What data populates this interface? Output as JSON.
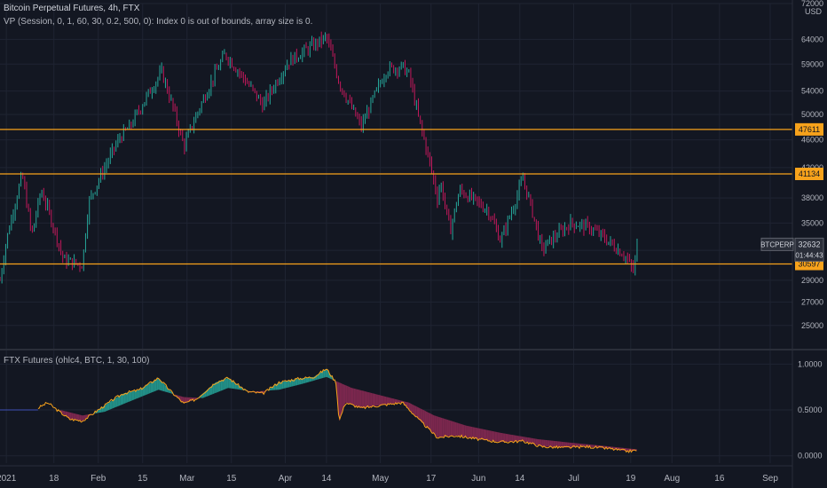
{
  "header": {
    "title": "Bitcoin Perpetual Futures, 4h, FTX",
    "indicator_error": "VP (Session, 0, 1, 60, 30, 0.2, 500, 0): Index 0 is out of bounds, array size is 0.",
    "lower_indicator": "FTX Futures (ohlc4, BTC, 1, 30, 100)"
  },
  "colors": {
    "background": "#131722",
    "grid": "#1f2432",
    "axis_text": "#b2b5be",
    "level_line": "#f7a21b",
    "candle_up": "#26a69a",
    "candle_down": "#c2185b",
    "oscillator": "#f7a21b",
    "ribbon_up": "#26a69a",
    "ribbon_down": "#8e2a56",
    "baseline": "#3f51b5"
  },
  "chart_data": [
    {
      "type": "candlestick",
      "title": "Bitcoin Perpetual Futures, 4h, FTX",
      "y_axis_unit": "USD",
      "y_scale": "log",
      "y_ticks": [
        25000,
        27000,
        29000,
        32000,
        35000,
        38000,
        42000,
        46000,
        50000,
        54000,
        59000,
        64000,
        72000
      ],
      "y_range": [
        23500,
        72000
      ],
      "x_tick_labels": [
        "2021",
        "18",
        "Feb",
        "15",
        "Mar",
        "15",
        "Apr",
        "14",
        "May",
        "17",
        "Jun",
        "14",
        "Jul",
        "19",
        "Aug",
        "16",
        "Sep"
      ],
      "x_range": [
        "2021-01-01",
        "2021-09-08"
      ],
      "levels": [
        47611,
        41134,
        30597
      ],
      "last_price": 32632,
      "symbol_tag": "BTCPERP",
      "countdown": "01:44:43",
      "price_path": [
        [
          "2021-01-01",
          29000
        ],
        [
          "2021-01-03",
          33000
        ],
        [
          "2021-01-08",
          41000
        ],
        [
          "2021-01-11",
          33500
        ],
        [
          "2021-01-14",
          39000
        ],
        [
          "2021-01-21",
          31000
        ],
        [
          "2021-01-27",
          30500
        ],
        [
          "2021-01-29",
          37500
        ],
        [
          "2021-02-08",
          46500
        ],
        [
          "2021-02-11",
          48000
        ],
        [
          "2021-02-21",
          57500
        ],
        [
          "2021-02-28",
          45000
        ],
        [
          "2021-03-13",
          61000
        ],
        [
          "2021-03-25",
          51500
        ],
        [
          "2021-04-02",
          59500
        ],
        [
          "2021-04-14",
          64500
        ],
        [
          "2021-04-18",
          55500
        ],
        [
          "2021-04-22",
          51000
        ],
        [
          "2021-04-25",
          48000
        ],
        [
          "2021-05-03",
          58000
        ],
        [
          "2021-05-08",
          58500
        ],
        [
          "2021-05-10",
          57000
        ],
        [
          "2021-05-13",
          49500
        ],
        [
          "2021-05-19",
          38000
        ],
        [
          "2021-05-20",
          40000
        ],
        [
          "2021-05-23",
          34000
        ],
        [
          "2021-05-26",
          39000
        ],
        [
          "2021-06-04",
          36500
        ],
        [
          "2021-06-08",
          33000
        ],
        [
          "2021-06-12",
          37000
        ],
        [
          "2021-06-15",
          40500
        ],
        [
          "2021-06-21",
          32000
        ],
        [
          "2021-06-22",
          32500
        ],
        [
          "2021-06-30",
          35000
        ],
        [
          "2021-07-06",
          34500
        ],
        [
          "2021-07-10",
          33500
        ],
        [
          "2021-07-17",
          31500
        ],
        [
          "2021-07-20",
          29800
        ],
        [
          "2021-07-21",
          32632
        ]
      ]
    },
    {
      "type": "line",
      "title": "FTX Futures (ohlc4, BTC, 1, 30, 100)",
      "y_ticks": [
        0.0,
        0.5,
        1.0
      ],
      "y_tick_labels": [
        "0.0000",
        "0.5000",
        "1.0000"
      ],
      "y_range": [
        -0.08,
        1.1
      ],
      "baseline_value": 0.5,
      "oscillator_path": [
        [
          "2021-01-13",
          0.52
        ],
        [
          "2021-01-16",
          0.58
        ],
        [
          "2021-01-19",
          0.5
        ],
        [
          "2021-01-23",
          0.4
        ],
        [
          "2021-01-27",
          0.38
        ],
        [
          "2021-02-01",
          0.5
        ],
        [
          "2021-02-06",
          0.62
        ],
        [
          "2021-02-09",
          0.68
        ],
        [
          "2021-02-14",
          0.72
        ],
        [
          "2021-02-20",
          0.85
        ],
        [
          "2021-02-24",
          0.7
        ],
        [
          "2021-02-28",
          0.57
        ],
        [
          "2021-03-04",
          0.62
        ],
        [
          "2021-03-10",
          0.8
        ],
        [
          "2021-03-14",
          0.85
        ],
        [
          "2021-03-20",
          0.7
        ],
        [
          "2021-03-25",
          0.68
        ],
        [
          "2021-03-30",
          0.8
        ],
        [
          "2021-04-05",
          0.84
        ],
        [
          "2021-04-10",
          0.86
        ],
        [
          "2021-04-14",
          0.95
        ],
        [
          "2021-04-17",
          0.8
        ],
        [
          "2021-04-18",
          0.38
        ],
        [
          "2021-04-20",
          0.58
        ],
        [
          "2021-04-25",
          0.52
        ],
        [
          "2021-05-01",
          0.55
        ],
        [
          "2021-05-08",
          0.58
        ],
        [
          "2021-05-13",
          0.4
        ],
        [
          "2021-05-19",
          0.2
        ],
        [
          "2021-05-25",
          0.22
        ],
        [
          "2021-06-01",
          0.18
        ],
        [
          "2021-06-08",
          0.15
        ],
        [
          "2021-06-15",
          0.16
        ],
        [
          "2021-06-21",
          0.1
        ],
        [
          "2021-06-28",
          0.09
        ],
        [
          "2021-07-05",
          0.1
        ],
        [
          "2021-07-12",
          0.08
        ],
        [
          "2021-07-18",
          0.05
        ],
        [
          "2021-07-21",
          0.06
        ]
      ],
      "ma_path": [
        [
          "2021-01-20",
          0.5
        ],
        [
          "2021-01-27",
          0.44
        ],
        [
          "2021-02-03",
          0.48
        ],
        [
          "2021-02-10",
          0.58
        ],
        [
          "2021-02-20",
          0.72
        ],
        [
          "2021-02-28",
          0.64
        ],
        [
          "2021-03-06",
          0.63
        ],
        [
          "2021-03-14",
          0.74
        ],
        [
          "2021-03-22",
          0.7
        ],
        [
          "2021-03-30",
          0.72
        ],
        [
          "2021-04-07",
          0.79
        ],
        [
          "2021-04-14",
          0.86
        ],
        [
          "2021-04-22",
          0.74
        ],
        [
          "2021-05-01",
          0.66
        ],
        [
          "2021-05-10",
          0.58
        ],
        [
          "2021-05-18",
          0.44
        ],
        [
          "2021-05-28",
          0.33
        ],
        [
          "2021-06-08",
          0.25
        ],
        [
          "2021-06-20",
          0.18
        ],
        [
          "2021-07-01",
          0.14
        ],
        [
          "2021-07-10",
          0.11
        ],
        [
          "2021-07-21",
          0.07
        ]
      ]
    }
  ]
}
